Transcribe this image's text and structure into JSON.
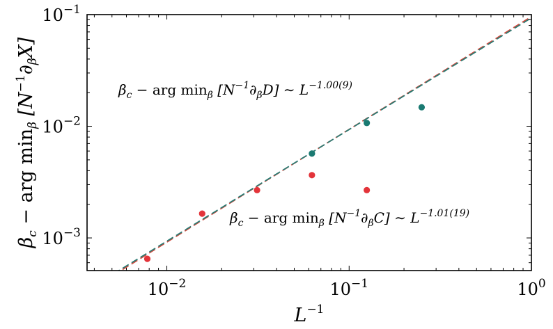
{
  "chart_data": {
    "type": "scatter",
    "x_scale": "log",
    "y_scale": "log",
    "xlim": [
      0.00365,
      1.0
    ],
    "ylim": [
      0.00051,
      0.1
    ],
    "xlabel_base": "L",
    "xlabel_exp": "−1",
    "ylabel_lead": "β",
    "ylabel_lead_sub": "c",
    "ylabel_rest": " − arg min",
    "ylabel_rest_sub": "β",
    "ylabel_bracket": " [N",
    "ylabel_bracket_sup": "−1",
    "ylabel_partial": "∂",
    "ylabel_partial_sub": "β",
    "ylabel_tail": "X]",
    "x_ticks": [
      {
        "value": 0.01,
        "base": "10",
        "exp": "−2"
      },
      {
        "value": 0.1,
        "base": "10",
        "exp": "−1"
      },
      {
        "value": 1,
        "base": "10",
        "exp": "0"
      }
    ],
    "y_ticks": [
      {
        "value": 0.001,
        "base": "10",
        "exp": "−3"
      },
      {
        "value": 0.01,
        "base": "10",
        "exp": "−2"
      },
      {
        "value": 0.1,
        "base": "10",
        "exp": "−1"
      }
    ],
    "series": [
      {
        "key": "D",
        "color": "#1a7a72",
        "points": [
          [
            0.0625,
            0.0057
          ],
          [
            0.125,
            0.0107
          ],
          [
            0.25,
            0.0148
          ]
        ],
        "fit": {
          "amplitude": 0.0935,
          "exponent": 1.0,
          "color": "#2a7a72"
        },
        "label": {
          "p1": "β",
          "p1sub": "c",
          "p2": " − arg min",
          "p2sub": "β",
          "p3": " [N",
          "p3sup": "−1",
          "p4": "∂",
          "p4sub": "β",
          "p5": "D] ∼ L",
          "p5sup": "−1.00(9)"
        }
      },
      {
        "key": "C",
        "color": "#e3343a",
        "points": [
          [
            0.0078125,
            0.00065
          ],
          [
            0.015625,
            0.00165
          ],
          [
            0.03125,
            0.00268
          ],
          [
            0.0625,
            0.00365
          ],
          [
            0.125,
            0.00268
          ]
        ],
        "fit": {
          "amplitude": 0.096,
          "exponent": 1.01,
          "color": "#d44a3e"
        },
        "label": {
          "p1": "β",
          "p1sub": "c",
          "p2": " − arg min",
          "p2sub": "β",
          "p3": " [N",
          "p3sup": "−1",
          "p4": "∂",
          "p4sub": "β",
          "p5": "C] ∼ L",
          "p5sup": "−1.01(19)"
        }
      }
    ],
    "grid": false,
    "legend": "none"
  }
}
